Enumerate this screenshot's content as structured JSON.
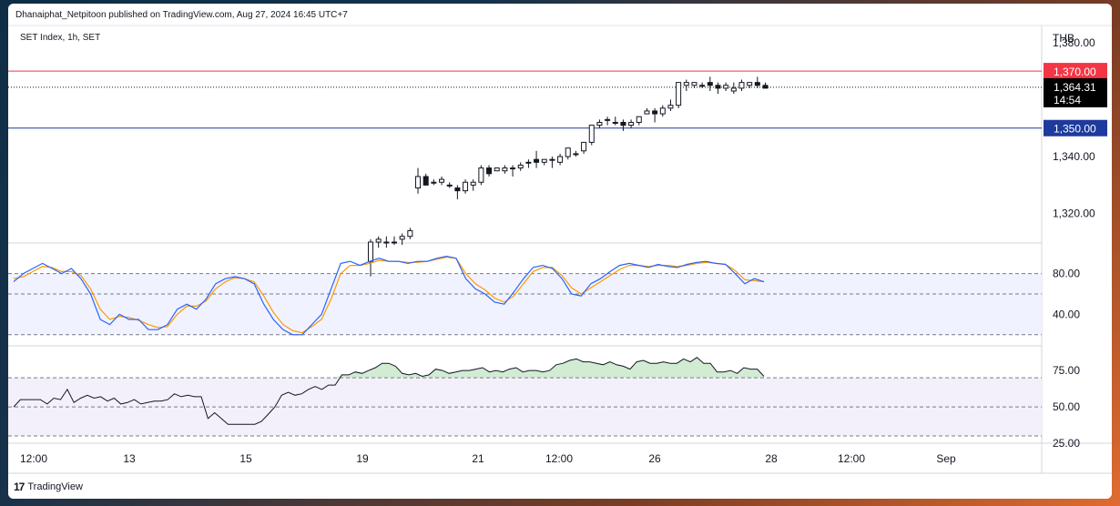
{
  "header": {
    "published_text": "Dhanaiphat_Netpitoon published on TradingView.com, Aug 27, 2024 16:45 UTC+7",
    "symbol_text": "SET Index, 1h, SET"
  },
  "footer": {
    "logo_mark": "17",
    "brand": "TradingView"
  },
  "chart_data": {
    "type": "candlestick",
    "currency": "THB",
    "price_axis": {
      "min": 1310,
      "max": 1386,
      "tick_labels": [
        "1,380.00",
        "1,340.00",
        "1,320.00"
      ],
      "tick_values": [
        1380,
        1340,
        1320
      ]
    },
    "horizontal_lines": [
      {
        "value": 1370,
        "label": "1,370.00",
        "color": "#f23645"
      },
      {
        "value": 1350,
        "label": "1,350.00",
        "color": "#1e3a9c"
      }
    ],
    "last_price": {
      "value": 1364.31,
      "label": "1,364.31",
      "countdown": "14:54"
    },
    "x_axis_labels": [
      "12:00",
      "13",
      "15",
      "19",
      "21",
      "12:00",
      "26",
      "28",
      "12:00",
      "Sep"
    ],
    "candles": [
      [
        1303,
        1311,
        1298,
        1310
      ],
      [
        1310,
        1312,
        1308,
        1311
      ],
      [
        1310,
        1312,
        1308,
        1310
      ],
      [
        1310,
        1312,
        1309,
        1310
      ],
      [
        1311,
        1313,
        1309,
        1312
      ],
      [
        1312,
        1315,
        1311,
        1314
      ],
      [
        1329,
        1336,
        1327,
        1333
      ],
      [
        1333,
        1334,
        1330,
        1330
      ],
      [
        1331,
        1332,
        1330,
        1331
      ],
      [
        1331,
        1333,
        1330,
        1332
      ],
      [
        1330,
        1331,
        1329,
        1330
      ],
      [
        1329,
        1330,
        1325,
        1328
      ],
      [
        1328,
        1332,
        1327,
        1331
      ],
      [
        1330,
        1332,
        1328,
        1331
      ],
      [
        1331,
        1337,
        1330,
        1336
      ],
      [
        1336,
        1337,
        1333,
        1334
      ],
      [
        1335,
        1336,
        1335,
        1336
      ],
      [
        1335,
        1337,
        1334,
        1336
      ],
      [
        1336,
        1337,
        1333,
        1336
      ],
      [
        1336,
        1338,
        1335,
        1337
      ],
      [
        1338,
        1339,
        1336,
        1338
      ],
      [
        1339,
        1342,
        1336,
        1338
      ],
      [
        1338,
        1339,
        1337,
        1339
      ],
      [
        1339,
        1340,
        1336,
        1339
      ],
      [
        1338,
        1341,
        1337,
        1340
      ],
      [
        1340,
        1343,
        1339,
        1343
      ],
      [
        1341,
        1342,
        1340,
        1341
      ],
      [
        1342,
        1345,
        1341,
        1345
      ],
      [
        1345,
        1351,
        1344,
        1351
      ],
      [
        1351,
        1353,
        1350,
        1352
      ],
      [
        1353,
        1354,
        1351,
        1353
      ],
      [
        1352,
        1354,
        1351,
        1352
      ],
      [
        1352,
        1353,
        1349,
        1351
      ],
      [
        1351,
        1353,
        1350,
        1352
      ],
      [
        1352,
        1354,
        1351,
        1354
      ],
      [
        1355,
        1357,
        1355,
        1356
      ],
      [
        1356,
        1357,
        1352,
        1355
      ],
      [
        1355,
        1358,
        1354,
        1357
      ],
      [
        1357,
        1360,
        1356,
        1358
      ],
      [
        1358,
        1366,
        1357,
        1366
      ],
      [
        1365,
        1367,
        1363,
        1366
      ],
      [
        1365,
        1366,
        1364,
        1366
      ],
      [
        1365,
        1366,
        1364,
        1365
      ],
      [
        1366,
        1368,
        1363,
        1365
      ],
      [
        1365,
        1366,
        1362,
        1364
      ],
      [
        1364,
        1366,
        1363,
        1365
      ],
      [
        1363,
        1366,
        1362,
        1364
      ],
      [
        1364,
        1367,
        1363,
        1366
      ],
      [
        1365,
        1366,
        1364,
        1366
      ],
      [
        1366,
        1368,
        1364,
        1365
      ],
      [
        1365,
        1366,
        1364,
        1364
      ]
    ],
    "oscillator_1": {
      "axis_labels": [
        "80.00",
        "40.00"
      ],
      "axis_values": [
        80,
        40
      ],
      "bands": [
        80,
        60,
        20
      ],
      "range": [
        10,
        110
      ],
      "k_color": "#2962ff",
      "d_color": "#ff9800",
      "k": [
        72,
        80,
        85,
        90,
        85,
        80,
        85,
        75,
        60,
        35,
        30,
        40,
        35,
        35,
        25,
        25,
        30,
        45,
        50,
        45,
        55,
        70,
        75,
        77,
        75,
        70,
        50,
        35,
        25,
        20,
        20,
        30,
        40,
        65,
        90,
        92,
        88,
        92,
        95,
        92,
        92,
        90,
        92,
        92,
        95,
        97,
        95,
        75,
        65,
        60,
        52,
        50,
        62,
        75,
        86,
        88,
        85,
        75,
        60,
        58,
        70,
        75,
        82,
        88,
        90,
        88,
        86,
        89,
        87,
        86,
        89,
        91,
        92,
        90,
        89,
        80,
        70,
        75,
        72
      ],
      "d": [
        75,
        77,
        82,
        87,
        86,
        82,
        82,
        78,
        65,
        45,
        35,
        38,
        37,
        34,
        30,
        27,
        28,
        40,
        48,
        48,
        53,
        65,
        72,
        76,
        75,
        72,
        58,
        42,
        30,
        24,
        22,
        28,
        35,
        55,
        80,
        88,
        88,
        90,
        93,
        92,
        92,
        91,
        91,
        92,
        94,
        96,
        95,
        80,
        70,
        64,
        56,
        52,
        58,
        70,
        82,
        86,
        86,
        78,
        66,
        60,
        66,
        72,
        78,
        84,
        88,
        88,
        87,
        88,
        88,
        87,
        88,
        90,
        91,
        90,
        89,
        83,
        74,
        73,
        72
      ]
    },
    "oscillator_2": {
      "axis_labels": [
        "75.00",
        "50.00",
        "25.00"
      ],
      "axis_values": [
        75,
        50,
        25
      ],
      "bands": [
        70,
        50,
        30
      ],
      "range": [
        25,
        92
      ],
      "values": [
        50,
        55,
        55,
        55,
        55,
        52,
        56,
        55,
        62,
        53,
        56,
        58,
        56,
        57,
        54,
        56,
        52,
        53,
        55,
        52,
        53,
        54,
        54,
        55,
        59,
        57,
        58,
        57,
        57,
        42,
        46,
        42,
        38,
        38,
        38,
        38,
        38,
        40,
        45,
        50,
        58,
        60,
        58,
        59,
        62,
        64,
        62,
        65,
        65,
        72,
        72,
        74,
        73,
        75,
        77,
        80,
        80,
        78,
        73,
        72,
        73,
        71,
        72,
        76,
        75,
        73,
        74,
        75,
        75,
        76,
        77,
        74,
        75,
        74,
        76,
        77,
        74,
        75,
        75,
        74,
        75,
        79,
        80,
        82,
        83,
        81,
        81,
        80,
        79,
        81,
        79,
        78,
        76,
        81,
        82,
        80,
        80,
        81,
        80,
        80,
        83,
        81,
        84,
        80,
        80,
        74,
        74,
        75,
        73,
        77,
        76,
        76,
        71
      ]
    }
  }
}
